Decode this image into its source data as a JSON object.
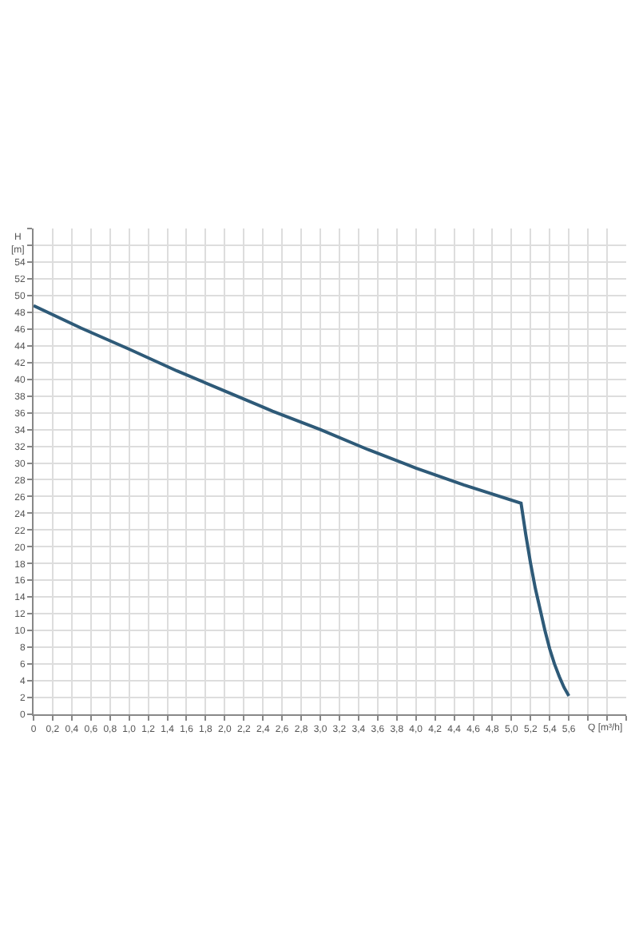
{
  "chart_data": {
    "type": "line",
    "xlabel": "Q [m³/h]",
    "ylabel": "H [m]",
    "x": [
      0,
      0.5,
      1.0,
      1.5,
      2.0,
      2.5,
      3.0,
      3.5,
      4.0,
      4.5,
      5.1,
      5.15,
      5.2,
      5.25,
      5.3,
      5.35,
      5.4,
      5.45,
      5.5,
      5.55,
      5.6
    ],
    "series": [
      {
        "color": "#2e5a78",
        "values": [
          48.8,
          46.1,
          43.6,
          41.0,
          38.6,
          36.2,
          34.0,
          31.6,
          29.4,
          27.4,
          25.2,
          21.4,
          18.0,
          15.0,
          12.5,
          10.0,
          7.8,
          6.0,
          4.5,
          3.2,
          2.2
        ]
      }
    ],
    "xlim": [
      0,
      6.2
    ],
    "ylim": [
      0,
      58
    ],
    "xticks": [
      0,
      {
        "value": 0.2,
        "label": "0,2"
      },
      {
        "value": 0.4,
        "label": "0,4"
      },
      {
        "value": 0.6,
        "label": "0,6"
      },
      {
        "value": 0.8,
        "label": "0,8"
      },
      {
        "value": 1.0,
        "label": "1,0"
      },
      {
        "value": 1.2,
        "label": "1,2"
      },
      {
        "value": 1.4,
        "label": "1,4"
      },
      {
        "value": 1.6,
        "label": "1,6"
      },
      {
        "value": 1.8,
        "label": "1,8"
      },
      {
        "value": 2.0,
        "label": "2,0"
      },
      {
        "value": 2.2,
        "label": "2,2"
      },
      {
        "value": 2.4,
        "label": "2,4"
      },
      {
        "value": 2.6,
        "label": "2,6"
      },
      {
        "value": 2.8,
        "label": "2,8"
      },
      {
        "value": 3.0,
        "label": "3,0"
      },
      {
        "value": 3.2,
        "label": "3,2"
      },
      {
        "value": 3.4,
        "label": "3,4"
      },
      {
        "value": 3.6,
        "label": "3,6"
      },
      {
        "value": 3.8,
        "label": "3,8"
      },
      {
        "value": 4.0,
        "label": "4,0"
      },
      {
        "value": 4.2,
        "label": "4,2"
      },
      {
        "value": 4.4,
        "label": "4,4"
      },
      {
        "value": 4.6,
        "label": "4,6"
      },
      {
        "value": 4.8,
        "label": "4,8"
      },
      {
        "value": 5.0,
        "label": "5,0"
      },
      {
        "value": 5.2,
        "label": "5,2"
      },
      {
        "value": 5.4,
        "label": "5,4"
      },
      {
        "value": 5.6,
        "label": "5,6"
      },
      {
        "value": 5.8,
        "label": null
      },
      {
        "value": 6.0,
        "label": null
      },
      {
        "value": 6.2,
        "label": null
      }
    ],
    "yticks": [
      0,
      2,
      4,
      6,
      8,
      10,
      12,
      14,
      16,
      18,
      20,
      22,
      24,
      26,
      28,
      30,
      32,
      34,
      36,
      38,
      40,
      42,
      44,
      46,
      48,
      50,
      52,
      54,
      {
        "value": 56,
        "label": null
      },
      {
        "value": 58,
        "label": null
      }
    ],
    "grid": true,
    "marker": "none",
    "line_style": "solid"
  }
}
